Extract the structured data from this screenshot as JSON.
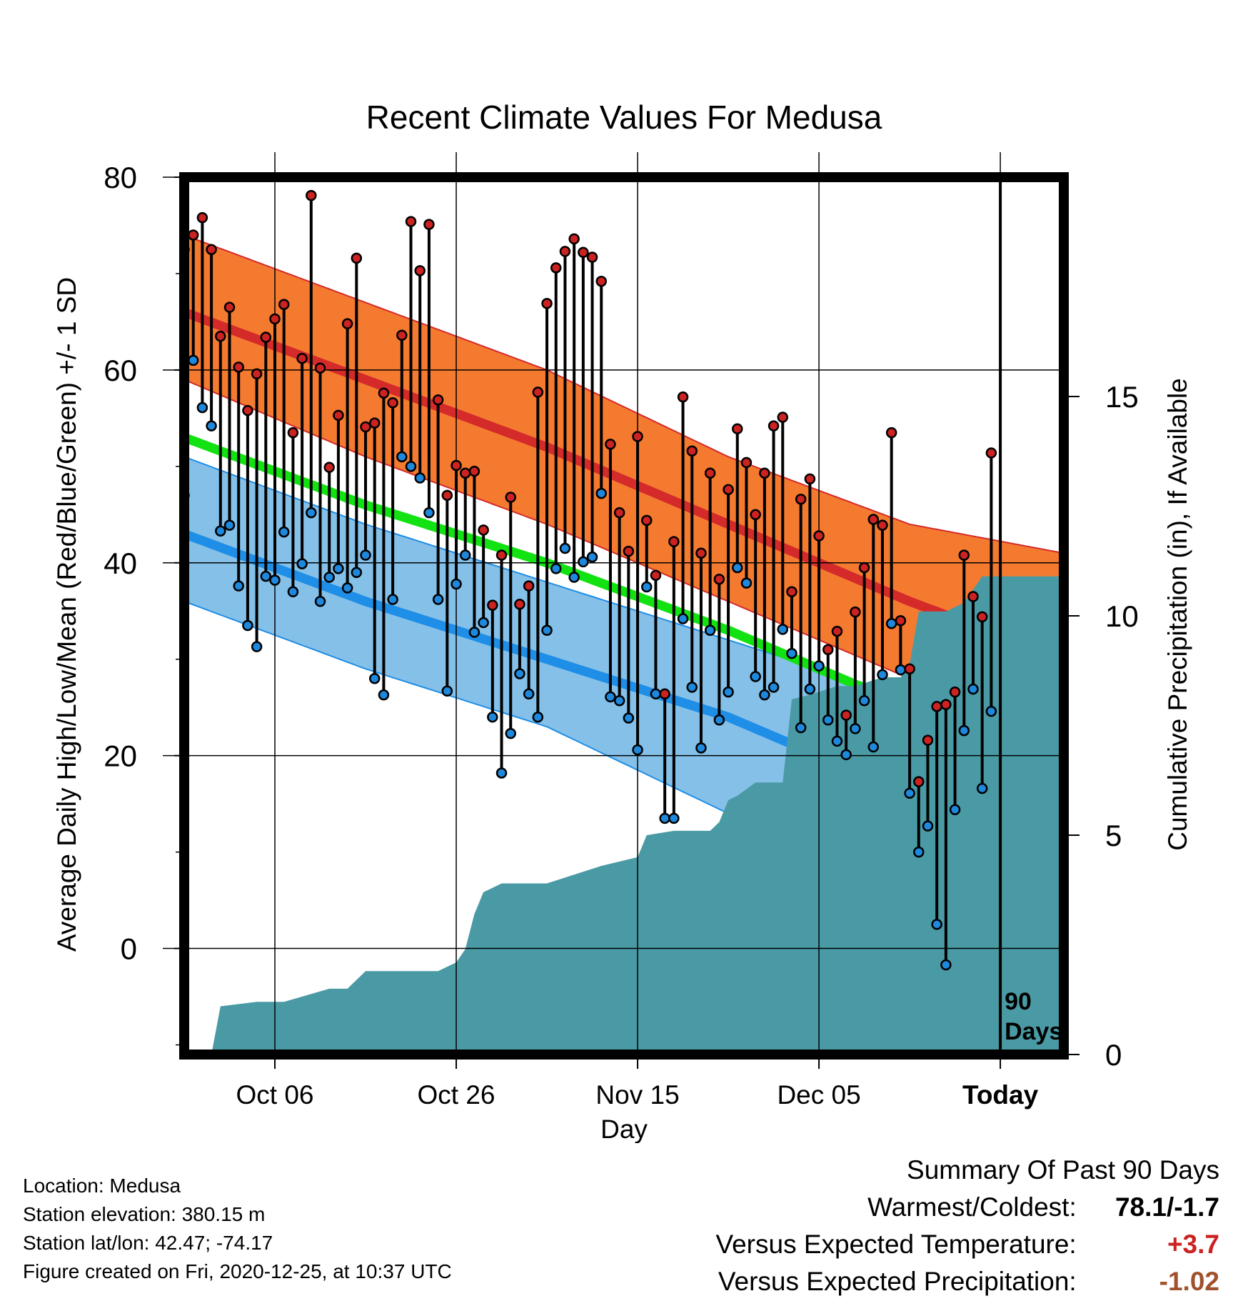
{
  "chart_data": {
    "type": "line",
    "title": "Recent Climate Values For Medusa",
    "xlabel": "Day",
    "ylabel_left": "Average Daily High/Low/Mean (Red/Blue/Green) +/- 1 SD",
    "ylabel_right": "Cumulative Precipitation (in), If Available",
    "x_range": [
      -88,
      9
    ],
    "ylim_left": [
      -11,
      80
    ],
    "ylim_right": [
      0,
      20
    ],
    "x_ticks": [
      {
        "day": -78,
        "label": "Oct 06"
      },
      {
        "day": -58,
        "label": "Oct 26"
      },
      {
        "day": -38,
        "label": "Nov 15"
      },
      {
        "day": -18,
        "label": "Dec 05"
      },
      {
        "day": 2,
        "label": "Today"
      }
    ],
    "y_ticks_left": [
      0,
      20,
      40,
      60,
      80
    ],
    "y_ticks_right": [
      0,
      5,
      10,
      15
    ],
    "today_marker": {
      "day": 2,
      "label_line1": "90",
      "label_line2": "Days"
    },
    "grid": true,
    "colors": {
      "high_band": "#f47a30",
      "high_mean": "#d42a2a",
      "low_band": "#85c0e8",
      "low_mean": "#1e8ee6",
      "avg_mean": "#12e212",
      "overlap": "#961212",
      "precip": "#4a9aa5",
      "high_point": "#cc2222",
      "low_point": "#1e88dd"
    },
    "normals": {
      "days": [
        -88,
        -68,
        -48,
        -28,
        -8,
        9
      ],
      "high_mean": [
        66,
        59,
        52,
        44,
        36,
        30
      ],
      "high_sd_upper": [
        74,
        67,
        60,
        51,
        44,
        41
      ],
      "high_sd_lower": [
        59,
        51,
        44,
        36,
        28,
        20
      ],
      "low_mean": [
        43,
        36,
        30,
        24,
        16,
        11
      ],
      "low_sd_upper": [
        51,
        44,
        38,
        32,
        26,
        24
      ],
      "low_sd_lower": [
        36,
        29,
        23,
        14,
        5,
        1
      ],
      "avg_mean": [
        53,
        46,
        40,
        33,
        25,
        19
      ]
    },
    "daily": {
      "start_day": -88,
      "high": [
        72.5,
        74,
        75.8,
        72.5,
        63.5,
        66.5,
        60.3,
        55.8,
        59.6,
        63.4,
        65.3,
        66.8,
        53.5,
        61.2,
        78.1,
        60.2,
        49.9,
        55.3,
        64.8,
        71.6,
        54.1,
        54.5,
        57.6,
        56.6,
        63.6,
        75.4,
        70.3,
        75.1,
        56.9,
        47.0,
        50.1,
        49.3,
        49.5,
        43.4,
        35.6,
        40.8,
        46.8,
        35.7,
        37.6,
        57.7,
        66.9,
        70.6,
        72.3,
        73.6,
        72.2,
        71.7,
        69.2,
        52.3,
        45.2,
        41.2,
        53.1,
        44.4,
        38.7,
        26.4,
        42.2,
        57.2,
        51.6,
        41.0,
        49.3,
        38.3,
        47.6,
        53.9,
        50.4,
        45.0,
        49.3,
        54.2,
        55.1,
        37.0,
        46.6,
        48.7,
        42.8,
        31.0,
        32.9,
        24.2,
        34.9,
        39.5,
        44.5,
        43.9,
        53.5,
        34.0,
        29.0,
        17.3,
        21.6,
        25.1,
        25.3,
        26.6,
        40.8,
        36.5,
        34.4,
        51.4
      ],
      "low": [
        47.0,
        61.0,
        56.1,
        54.2,
        43.3,
        43.9,
        37.6,
        33.5,
        31.3,
        38.6,
        38.2,
        43.2,
        37.0,
        39.9,
        45.2,
        36.0,
        38.5,
        39.4,
        37.4,
        39.0,
        40.8,
        28.0,
        26.3,
        36.2,
        51.0,
        50.0,
        48.8,
        45.2,
        36.2,
        26.7,
        37.8,
        40.8,
        32.8,
        33.8,
        24.0,
        18.2,
        22.3,
        28.5,
        26.4,
        24.0,
        33.0,
        39.4,
        41.5,
        38.5,
        40.1,
        40.6,
        47.2,
        26.1,
        25.7,
        23.9,
        20.6,
        37.5,
        26.4,
        13.5,
        13.5,
        34.2,
        27.1,
        20.8,
        33.0,
        23.7,
        26.6,
        39.5,
        37.9,
        28.2,
        26.3,
        27.1,
        33.1,
        30.6,
        22.9,
        26.9,
        29.3,
        23.7,
        21.5,
        20.1,
        22.8,
        25.7,
        20.9,
        28.4,
        33.7,
        28.9,
        16.1,
        10.0,
        12.7,
        2.5,
        -1.7,
        14.4,
        22.6,
        26.9,
        16.6,
        24.6
      ]
    },
    "precip_cumulative": {
      "days": [
        -88,
        -85,
        -84,
        -80,
        -77,
        -72,
        -70,
        -68,
        -63,
        -61,
        -60,
        -58,
        -57,
        -56,
        -55,
        -54,
        -53,
        -51,
        -48,
        -45,
        -42,
        -38,
        -37,
        -34,
        -32,
        -30,
        -29,
        -28,
        -27,
        -25,
        -24,
        -22,
        -21,
        -19,
        -16,
        -14,
        -11,
        -9,
        -8,
        -7,
        -4,
        -2,
        0,
        9
      ],
      "values": [
        0,
        0,
        1.1,
        1.2,
        1.2,
        1.5,
        1.5,
        1.9,
        1.9,
        1.9,
        1.9,
        2.1,
        2.4,
        3.2,
        3.7,
        3.8,
        3.9,
        3.9,
        3.9,
        4.1,
        4.3,
        4.5,
        5.0,
        5.1,
        5.1,
        5.1,
        5.3,
        5.8,
        5.9,
        6.2,
        6.2,
        6.2,
        8.1,
        8.2,
        8.4,
        8.4,
        8.6,
        8.6,
        8.9,
        10.1,
        10.1,
        10.3,
        10.9,
        10.9
      ]
    }
  },
  "footer": {
    "location": "Location: Medusa",
    "elevation": "Station elevation: 380.15 m",
    "latlon": "Station lat/lon: 42.47; -74.17",
    "created": "Figure created on Fri, 2020-12-25, at 10:37 UTC"
  },
  "summary": {
    "heading": "Summary Of Past 90 Days",
    "warmest_label": "Warmest/Coldest:",
    "warmest_value": "78.1/-1.7",
    "temp_label": "Versus Expected Temperature:",
    "temp_value": "+3.7",
    "precip_label": "Versus Expected Precipitation:",
    "precip_value": "-1.02"
  }
}
